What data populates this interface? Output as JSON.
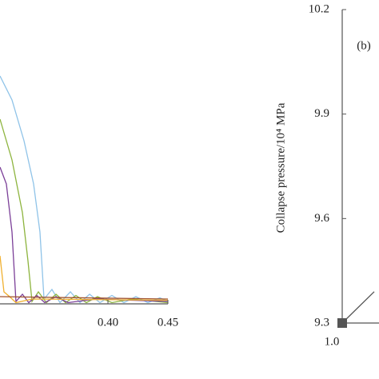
{
  "chart_data": [
    {
      "type": "line",
      "xlim": [
        0.31,
        0.45
      ],
      "ylim": [
        0,
        1
      ],
      "xticks": [
        {
          "value": 0.4,
          "label": "0.40"
        },
        {
          "value": 0.45,
          "label": "0.45"
        }
      ],
      "series": [
        {
          "color": "#8fc3e8",
          "x": [
            0.31,
            0.32,
            0.33,
            0.338,
            0.3433,
            0.3467,
            0.3533,
            0.36,
            0.3687,
            0.3767,
            0.3847,
            0.3933,
            0.4033,
            0.4133,
            0.4233,
            0.4333,
            0.4433,
            0.45
          ],
          "values": [
            0.95,
            0.85,
            0.68,
            0.5,
            0.3,
            0.02,
            0.06,
            0.005,
            0.05,
            0.005,
            0.04,
            0.005,
            0.035,
            0.005,
            0.03,
            0.005,
            0.025,
            0.01
          ]
        },
        {
          "color": "#8db43e",
          "x": [
            0.31,
            0.32,
            0.3287,
            0.3333,
            0.3367,
            0.342,
            0.3487,
            0.3567,
            0.3647,
            0.3733,
            0.382,
            0.3913,
            0.4033,
            0.42,
            0.45
          ],
          "values": [
            0.77,
            0.6,
            0.38,
            0.18,
            0.01,
            0.05,
            0.005,
            0.04,
            0.005,
            0.035,
            0.005,
            0.03,
            0.005,
            0.02,
            0.005
          ]
        },
        {
          "color": "#7b3f98",
          "x": [
            0.31,
            0.3153,
            0.32,
            0.3233,
            0.3287,
            0.334,
            0.3407,
            0.3473,
            0.3567,
            0.3667,
            0.39,
            0.45
          ],
          "values": [
            0.57,
            0.5,
            0.3,
            0.01,
            0.04,
            0.005,
            0.035,
            0.005,
            0.03,
            0.005,
            0.02,
            0.01
          ]
        },
        {
          "color": "#f0b030",
          "x": [
            0.31,
            0.3133,
            0.318,
            0.3233,
            0.3367,
            0.45
          ],
          "values": [
            0.2,
            0.05,
            0.03,
            0.005,
            0.02,
            0.015
          ]
        },
        {
          "color": "#a0522d",
          "x": [
            0.31,
            0.45
          ],
          "values": [
            0.03,
            0.02
          ]
        }
      ]
    },
    {
      "type": "line",
      "annotation": "(b)",
      "y_label": "Collapse pressure/10⁴ MPa",
      "xlim": [
        1.0,
        2.0
      ],
      "ylim": [
        9.3,
        10.2
      ],
      "xticks": [
        {
          "value": 1.0,
          "label": "1.0"
        }
      ],
      "yticks": [
        9.3,
        9.6,
        9.9,
        10.2
      ],
      "series": [
        {
          "color": "#555555",
          "x": [
            1.0,
            1.2
          ],
          "values": [
            9.3,
            9.39
          ]
        }
      ]
    }
  ]
}
